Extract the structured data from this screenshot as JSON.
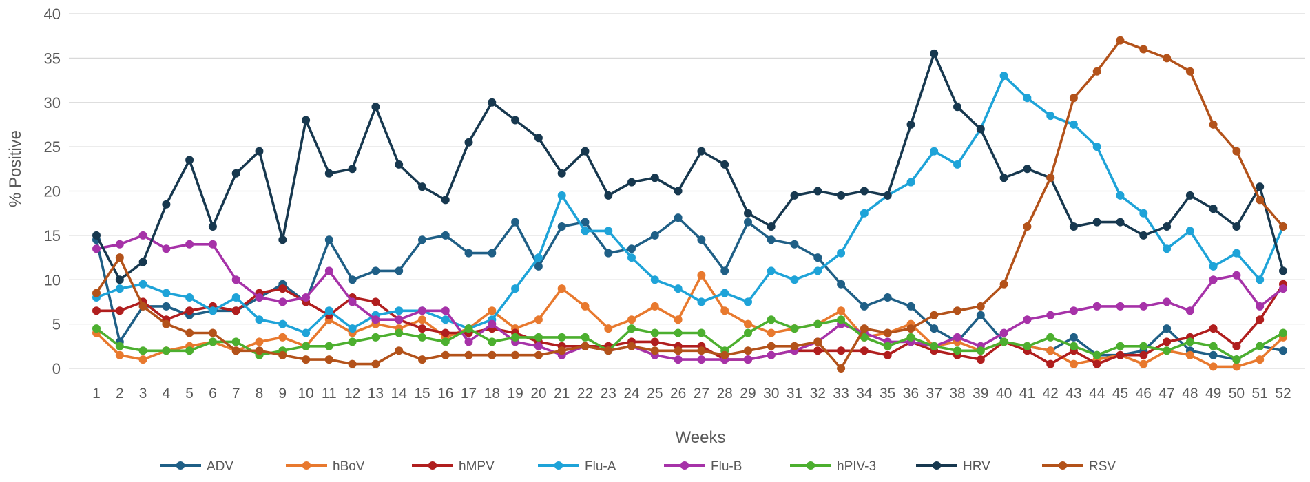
{
  "chart_data": {
    "type": "line",
    "title": "",
    "xlabel": "Weeks",
    "ylabel": "% Positive",
    "ylim": [
      0,
      40
    ],
    "yticks": [
      0,
      5,
      10,
      15,
      20,
      25,
      30,
      35,
      40
    ],
    "grid": true,
    "legend_position": "bottom",
    "x": [
      1,
      2,
      3,
      4,
      5,
      6,
      7,
      8,
      9,
      10,
      11,
      12,
      13,
      14,
      15,
      16,
      17,
      18,
      19,
      20,
      21,
      22,
      23,
      24,
      25,
      26,
      27,
      28,
      29,
      30,
      31,
      32,
      33,
      34,
      35,
      36,
      37,
      38,
      39,
      40,
      41,
      42,
      43,
      44,
      45,
      46,
      47,
      48,
      49,
      50,
      51,
      52
    ],
    "series": [
      {
        "name": "ADV",
        "color": "#1f5f86",
        "values": [
          14.5,
          3.0,
          7.0,
          7.0,
          6.0,
          6.5,
          6.5,
          8.0,
          9.5,
          7.5,
          14.5,
          10.0,
          11.0,
          11.0,
          14.5,
          15.0,
          13.0,
          13.0,
          16.5,
          11.5,
          16.0,
          16.5,
          13.0,
          13.5,
          15.0,
          17.0,
          14.5,
          11.0,
          16.5,
          14.5,
          14.0,
          12.5,
          9.5,
          7.0,
          8.0,
          7.0,
          4.5,
          3.0,
          6.0,
          3.0,
          2.5,
          2.0,
          3.5,
          1.5,
          1.5,
          2.0,
          4.5,
          2.0,
          1.5,
          1.0,
          2.5,
          2.0
        ]
      },
      {
        "name": "hBoV",
        "color": "#e8792e",
        "values": [
          4.0,
          1.5,
          1.0,
          2.0,
          2.5,
          3.0,
          2.0,
          3.0,
          3.5,
          2.5,
          5.5,
          4.0,
          5.0,
          4.5,
          5.5,
          3.5,
          4.5,
          6.5,
          4.5,
          5.5,
          9.0,
          7.0,
          4.5,
          5.5,
          7.0,
          5.5,
          10.5,
          6.5,
          5.0,
          4.0,
          4.5,
          5.0,
          6.5,
          3.5,
          4.0,
          5.0,
          2.5,
          3.0,
          2.0,
          3.0,
          2.5,
          2.0,
          0.5,
          1.0,
          1.5,
          0.5,
          2.0,
          1.5,
          0.2,
          0.2,
          1.0,
          3.5
        ]
      },
      {
        "name": "hMPV",
        "color": "#b01e1e",
        "values": [
          6.5,
          6.5,
          7.5,
          5.5,
          6.5,
          7.0,
          6.5,
          8.5,
          9.0,
          7.5,
          6.0,
          8.0,
          7.5,
          5.5,
          4.5,
          4.0,
          4.0,
          4.5,
          4.0,
          3.0,
          2.5,
          2.5,
          2.5,
          3.0,
          3.0,
          2.5,
          2.5,
          1.0,
          1.0,
          1.5,
          2.0,
          2.0,
          2.0,
          2.0,
          1.5,
          3.0,
          2.0,
          1.5,
          1.0,
          3.0,
          2.0,
          0.5,
          2.0,
          0.5,
          1.5,
          1.5,
          3.0,
          3.5,
          4.5,
          2.5,
          5.5,
          9.5
        ]
      },
      {
        "name": "Flu-A",
        "color": "#1ea3d8",
        "values": [
          8.0,
          9.0,
          9.5,
          8.5,
          8.0,
          6.5,
          8.0,
          5.5,
          5.0,
          4.0,
          6.5,
          4.5,
          6.0,
          6.5,
          6.5,
          5.5,
          4.5,
          5.5,
          9.0,
          12.5,
          19.5,
          15.5,
          15.5,
          12.5,
          10.0,
          9.0,
          7.5,
          8.5,
          7.5,
          11.0,
          10.0,
          11.0,
          13.0,
          17.5,
          19.5,
          21.0,
          24.5,
          23.0,
          27.0,
          33.0,
          30.5,
          28.5,
          27.5,
          25.0,
          19.5,
          17.5,
          13.5,
          15.5,
          11.5,
          13.0,
          10.0,
          16.0
        ]
      },
      {
        "name": "Flu-B",
        "color": "#a632a8",
        "values": [
          13.5,
          14.0,
          15.0,
          13.5,
          14.0,
          14.0,
          10.0,
          8.0,
          7.5,
          8.0,
          11.0,
          7.5,
          5.5,
          5.5,
          6.5,
          6.5,
          3.0,
          5.0,
          3.0,
          2.5,
          1.5,
          2.5,
          2.0,
          2.5,
          1.5,
          1.0,
          1.0,
          1.0,
          1.0,
          1.5,
          2.0,
          3.0,
          5.0,
          4.0,
          3.0,
          3.0,
          2.5,
          3.5,
          2.5,
          4.0,
          5.5,
          6.0,
          6.5,
          7.0,
          7.0,
          7.0,
          7.5,
          6.5,
          10.0,
          10.5,
          7.0,
          9.0
        ]
      },
      {
        "name": "hPIV-3",
        "color": "#4caf2f",
        "values": [
          4.5,
          2.5,
          2.0,
          2.0,
          2.0,
          3.0,
          3.0,
          1.5,
          2.0,
          2.5,
          2.5,
          3.0,
          3.5,
          4.0,
          3.5,
          3.0,
          4.5,
          3.0,
          3.5,
          3.5,
          3.5,
          3.5,
          2.0,
          4.5,
          4.0,
          4.0,
          4.0,
          2.0,
          4.0,
          5.5,
          4.5,
          5.0,
          5.5,
          3.5,
          2.5,
          3.5,
          2.5,
          2.0,
          2.0,
          3.0,
          2.5,
          3.5,
          2.5,
          1.5,
          2.5,
          2.5,
          2.0,
          3.0,
          2.5,
          1.0,
          2.5,
          4.0
        ]
      },
      {
        "name": "HRV",
        "color": "#17384f",
        "values": [
          15.0,
          10.0,
          12.0,
          18.5,
          23.5,
          16.0,
          22.0,
          24.5,
          14.5,
          28.0,
          22.0,
          22.5,
          29.5,
          23.0,
          20.5,
          19.0,
          25.5,
          30.0,
          28.0,
          26.0,
          22.0,
          24.5,
          19.5,
          21.0,
          21.5,
          20.0,
          24.5,
          23.0,
          17.5,
          16.0,
          19.5,
          20.0,
          19.5,
          20.0,
          19.5,
          27.5,
          35.5,
          29.5,
          27.0,
          21.5,
          22.5,
          21.5,
          16.0,
          16.5,
          16.5,
          15.0,
          16.0,
          19.5,
          18.0,
          16.0,
          20.5,
          11.0
        ]
      },
      {
        "name": "RSV",
        "color": "#b3521a",
        "values": [
          8.5,
          12.5,
          7.0,
          5.0,
          4.0,
          4.0,
          2.0,
          2.0,
          1.5,
          1.0,
          1.0,
          0.5,
          0.5,
          2.0,
          1.0,
          1.5,
          1.5,
          1.5,
          1.5,
          1.5,
          2.0,
          2.5,
          2.0,
          2.5,
          2.0,
          2.0,
          2.0,
          1.5,
          2.0,
          2.5,
          2.5,
          3.0,
          0.0,
          4.5,
          4.0,
          4.5,
          6.0,
          6.5,
          7.0,
          9.5,
          16.0,
          21.5,
          30.5,
          33.5,
          37.0,
          36.0,
          35.0,
          33.5,
          27.5,
          24.5,
          19.0,
          16.0
        ]
      }
    ]
  }
}
